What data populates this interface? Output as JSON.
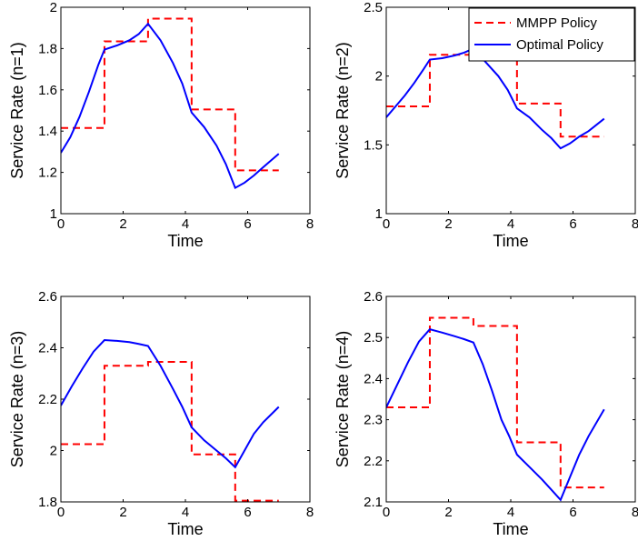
{
  "legend": {
    "placement": "top-right of top-right subplot",
    "entries": [
      {
        "name": "MMPP Policy",
        "color": "#ff0000",
        "style": "dashed"
      },
      {
        "name": "Optimal Policy",
        "color": "#0000ff",
        "style": "solid"
      }
    ]
  },
  "chart_data": [
    {
      "type": "line",
      "xlabel": "Time",
      "ylabel": "Service Rate (n=1)",
      "xlim": [
        0,
        8
      ],
      "ylim": [
        1,
        2
      ],
      "xticks": [
        "0",
        "2",
        "4",
        "6",
        "8"
      ],
      "yticks": [
        "1",
        "1.2",
        "1.4",
        "1.6",
        "1.8",
        "2"
      ],
      "grid": false,
      "series": [
        {
          "name": "MMPP Policy",
          "step": true,
          "x": [
            0,
            1.4,
            1.4,
            2.8,
            2.8,
            4.2,
            4.2,
            5.6,
            5.6,
            7.0
          ],
          "y": [
            1.415,
            1.415,
            1.835,
            1.835,
            1.945,
            1.945,
            1.505,
            1.505,
            1.21,
            1.21
          ]
        },
        {
          "name": "Optimal Policy",
          "step": false,
          "x": [
            0,
            0.3,
            0.6,
            0.9,
            1.2,
            1.4,
            1.8,
            2.2,
            2.5,
            2.8,
            3.2,
            3.6,
            3.9,
            4.2,
            4.6,
            5.0,
            5.3,
            5.6,
            5.9,
            6.2,
            6.5,
            7.0
          ],
          "y": [
            1.295,
            1.37,
            1.47,
            1.59,
            1.72,
            1.795,
            1.815,
            1.84,
            1.87,
            1.92,
            1.84,
            1.73,
            1.63,
            1.49,
            1.42,
            1.33,
            1.24,
            1.125,
            1.15,
            1.185,
            1.225,
            1.29
          ]
        }
      ]
    },
    {
      "type": "line",
      "xlabel": "Time",
      "ylabel": "Service Rate (n=2)",
      "xlim": [
        0,
        8
      ],
      "ylim": [
        1,
        2.5
      ],
      "xticks": [
        "0",
        "2",
        "4",
        "6",
        "8"
      ],
      "yticks": [
        "1",
        "1.5",
        "2",
        "2.5"
      ],
      "grid": false,
      "series": [
        {
          "name": "MMPP Policy",
          "step": true,
          "x": [
            0,
            1.4,
            1.4,
            2.8,
            2.8,
            4.2,
            4.2,
            5.6,
            5.6,
            7.0
          ],
          "y": [
            1.78,
            1.78,
            2.155,
            2.155,
            2.21,
            2.21,
            1.8,
            1.8,
            1.56,
            1.56
          ]
        },
        {
          "name": "Optimal Policy",
          "step": false,
          "x": [
            0,
            0.3,
            0.6,
            0.9,
            1.2,
            1.4,
            1.8,
            2.2,
            2.5,
            2.8,
            3.2,
            3.6,
            3.9,
            4.2,
            4.6,
            5.0,
            5.3,
            5.6,
            5.9,
            6.2,
            6.5,
            7.0
          ],
          "y": [
            1.7,
            1.78,
            1.86,
            1.95,
            2.05,
            2.12,
            2.13,
            2.15,
            2.17,
            2.2,
            2.1,
            2.0,
            1.9,
            1.765,
            1.7,
            1.61,
            1.55,
            1.475,
            1.51,
            1.56,
            1.6,
            1.69
          ]
        }
      ]
    },
    {
      "type": "line",
      "xlabel": "Time",
      "ylabel": "Service Rate (n=3)",
      "xlim": [
        0,
        8
      ],
      "ylim": [
        1.8,
        2.6
      ],
      "xticks": [
        "0",
        "2",
        "4",
        "6",
        "8"
      ],
      "yticks": [
        "1.8",
        "2",
        "2.2",
        "2.4",
        "2.6"
      ],
      "grid": false,
      "series": [
        {
          "name": "MMPP Policy",
          "step": true,
          "x": [
            0,
            1.4,
            1.4,
            2.8,
            2.8,
            4.2,
            4.2,
            5.6,
            5.6,
            7.0
          ],
          "y": [
            2.025,
            2.025,
            2.33,
            2.33,
            2.345,
            2.345,
            1.985,
            1.985,
            1.805,
            1.805
          ]
        },
        {
          "name": "Optimal Policy",
          "step": false,
          "x": [
            0,
            0.35,
            0.7,
            1.05,
            1.4,
            1.8,
            2.2,
            2.5,
            2.8,
            3.2,
            3.6,
            3.9,
            4.2,
            4.6,
            5.0,
            5.3,
            5.6,
            5.9,
            6.2,
            6.5,
            7.0
          ],
          "y": [
            2.175,
            2.25,
            2.32,
            2.385,
            2.43,
            2.427,
            2.422,
            2.415,
            2.407,
            2.33,
            2.24,
            2.17,
            2.09,
            2.04,
            2.0,
            1.97,
            1.935,
            2.0,
            2.065,
            2.11,
            2.17
          ]
        }
      ]
    },
    {
      "type": "line",
      "xlabel": "Time",
      "ylabel": "Service Rate (n=4)",
      "xlim": [
        0,
        8
      ],
      "ylim": [
        2.1,
        2.6
      ],
      "xticks": [
        "0",
        "2",
        "4",
        "6",
        "8"
      ],
      "yticks": [
        "2.1",
        "2.2",
        "2.3",
        "2.4",
        "2.5",
        "2.6"
      ],
      "grid": false,
      "series": [
        {
          "name": "MMPP Policy",
          "step": true,
          "x": [
            0,
            1.4,
            1.4,
            2.8,
            2.8,
            4.2,
            4.2,
            5.6,
            5.6,
            7.0
          ],
          "y": [
            2.33,
            2.33,
            2.548,
            2.548,
            2.528,
            2.528,
            2.245,
            2.245,
            2.135,
            2.135
          ]
        },
        {
          "name": "Optimal Policy",
          "step": false,
          "x": [
            0,
            0.35,
            0.7,
            1.05,
            1.4,
            1.8,
            2.2,
            2.5,
            2.8,
            3.1,
            3.4,
            3.7,
            3.95,
            4.2,
            4.6,
            5.0,
            5.3,
            5.6,
            5.9,
            6.2,
            6.5,
            7.0
          ],
          "y": [
            2.33,
            2.385,
            2.44,
            2.49,
            2.52,
            2.512,
            2.503,
            2.496,
            2.488,
            2.435,
            2.37,
            2.3,
            2.26,
            2.215,
            2.185,
            2.155,
            2.13,
            2.105,
            2.16,
            2.215,
            2.26,
            2.325
          ]
        }
      ]
    }
  ]
}
